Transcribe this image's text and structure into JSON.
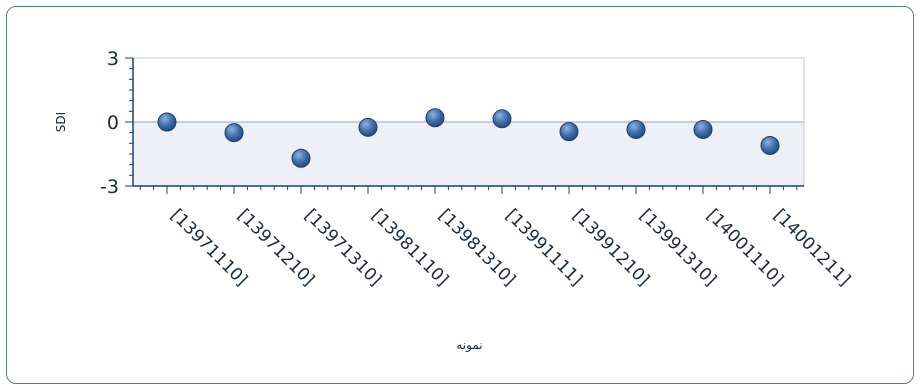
{
  "chart_data": {
    "type": "scatter",
    "title": "",
    "xlabel": "نمونه",
    "ylabel": "SDI",
    "ylim": [
      -3,
      3
    ],
    "yticks": [
      "3",
      "0",
      "-3"
    ],
    "categories": [
      "[13971110]",
      "[13971210]",
      "[13971310]",
      "[13981110]",
      "[13981310]",
      "[13991111]",
      "[13991210]",
      "[13991310]",
      "[14001110]",
      "[14001211]"
    ],
    "series": [
      {
        "values": [
          0.0,
          -0.5,
          -1.7,
          -0.25,
          0.2,
          0.15,
          -0.45,
          -0.35,
          -0.35,
          -1.1
        ]
      }
    ],
    "grid": false,
    "legend": "none",
    "colors": {
      "marker": "#3a6aa8",
      "marker_edge": "#1f3f6b",
      "band": "#eef0f7",
      "axis": "#1f3f6b",
      "border": "#4f7bb0"
    }
  }
}
